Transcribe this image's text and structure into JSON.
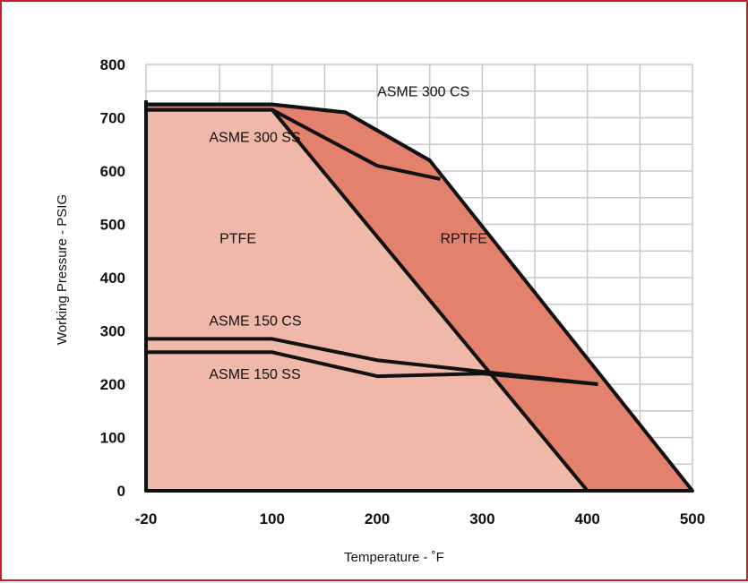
{
  "colors": {
    "frame": "#c8202b",
    "ptfe_fill": "#f0b8a8",
    "rptfe_fill": "#e4816c",
    "grid": "#c8c8c8",
    "line": "#111111"
  },
  "chart_data": {
    "type": "area",
    "xlabel": "Temperature - ˚F",
    "ylabel": "Working Pressure - PSIG",
    "xlim": [
      -20,
      500
    ],
    "ylim": [
      0,
      800
    ],
    "x_ticks": [
      "-20",
      "100",
      "200",
      "300",
      "400",
      "500"
    ],
    "y_ticks": [
      "0",
      "100",
      "200",
      "300",
      "400",
      "500",
      "600",
      "700",
      "800"
    ],
    "grid": true,
    "regions": [
      {
        "name": "RPTFE",
        "fill": "#e4816c",
        "x": [
          -20,
          100,
          170,
          250,
          500
        ],
        "y": [
          725,
          725,
          710,
          620,
          0
        ]
      },
      {
        "name": "PTFE",
        "fill": "#f0b8a8",
        "x": [
          -20,
          100,
          400
        ],
        "y": [
          715,
          715,
          0
        ]
      }
    ],
    "lines": [
      {
        "name": "ASME 300 CS",
        "x": [
          -20,
          100,
          170,
          250
        ],
        "y": [
          725,
          725,
          710,
          620
        ]
      },
      {
        "name": "ASME 300 SS",
        "x": [
          -20,
          100,
          200,
          260
        ],
        "y": [
          715,
          715,
          610,
          585
        ]
      },
      {
        "name": "ASME 150 CS",
        "x": [
          -20,
          100,
          200,
          410
        ],
        "y": [
          285,
          285,
          245,
          200
        ]
      },
      {
        "name": "ASME 150 SS",
        "x": [
          -20,
          100,
          200,
          300,
          410
        ],
        "y": [
          260,
          260,
          215,
          220,
          200
        ]
      }
    ],
    "annotations": [
      {
        "text": "ASME 300 CS",
        "x": 200,
        "y": 740
      },
      {
        "text": "ASME 300 SS",
        "x": 40,
        "y": 655
      },
      {
        "text": "PTFE",
        "x": 50,
        "y": 465
      },
      {
        "text": "RPTFE",
        "x": 260,
        "y": 465
      },
      {
        "text": "ASME 150 CS",
        "x": 40,
        "y": 310
      },
      {
        "text": "ASME 150 SS",
        "x": 40,
        "y": 210
      }
    ]
  }
}
